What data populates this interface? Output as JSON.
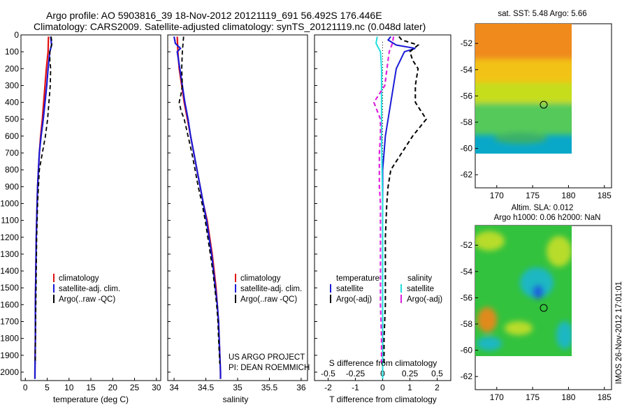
{
  "header": {
    "title_line1": "Argo profile: AO 5903816_39 18-Nov-2012 20121119_691 56.492S 176.446E",
    "title_line2": "Climatology: CARS2009. Satellite-adjusted climatology: synTS_20121119.nc (0.048d later)"
  },
  "colors": {
    "climatology": "#e01010",
    "satellite": "#1a1ad6",
    "argo": "#000000",
    "salinity_satellite": "#22dddd",
    "salinity_argo": "#dd22dd"
  },
  "depth_axis": {
    "ylim": [
      0,
      2050
    ],
    "ticks": [
      0,
      100,
      200,
      300,
      400,
      500,
      600,
      700,
      800,
      900,
      1000,
      1100,
      1200,
      1300,
      1400,
      1500,
      1600,
      1700,
      1800,
      1900,
      2000
    ]
  },
  "legend_profiles": {
    "climatology": "climatology",
    "satellite": "satellite-adj. clim.",
    "argo": "Argo(..raw -QC)"
  },
  "legend_diff": {
    "temp_header": "temperature",
    "sal_header": "salinity",
    "satellite": "satellite",
    "argo": "Argo(-adj)"
  },
  "project_note": {
    "line1": "US ARGO PROJECT",
    "line2": "PI: DEAN ROEMMICH"
  },
  "watermark": "IMOS 26-Nov-2012 17:01:01",
  "chart_data": [
    {
      "type": "line",
      "panel": "temperature",
      "xlabel": "temperature (deg C)",
      "ylabel": "",
      "xlim": [
        -1,
        31
      ],
      "ylim": [
        0,
        2050
      ],
      "xticks": [
        0,
        5,
        10,
        15,
        20,
        25,
        30
      ],
      "series": [
        {
          "name": "climatology",
          "depth": [
            10,
            100,
            200,
            300,
            400,
            500,
            600,
            700,
            800,
            900,
            1000,
            1200,
            1400,
            1600,
            1800,
            2000,
            2040
          ],
          "values": [
            5.3,
            5.2,
            4.8,
            4.5,
            4.2,
            3.9,
            3.5,
            3.2,
            3.0,
            2.8,
            2.7,
            2.5,
            2.4,
            2.3,
            2.3,
            2.2,
            2.2
          ]
        },
        {
          "name": "satellite-adj. clim.",
          "depth": [
            10,
            60,
            100,
            200,
            300,
            400,
            500,
            600,
            700,
            800,
            900,
            1000,
            1200,
            1400,
            1600,
            1800,
            2000,
            2040
          ],
          "values": [
            5.8,
            6.0,
            5.6,
            5.2,
            4.9,
            4.5,
            4.1,
            3.6,
            3.2,
            3.0,
            2.8,
            2.7,
            2.5,
            2.4,
            2.3,
            2.3,
            2.2,
            2.2
          ]
        },
        {
          "name": "Argo(..raw -QC)",
          "depth": [
            10,
            50,
            100,
            150,
            200,
            300,
            400,
            500,
            600,
            700,
            800,
            900,
            1000,
            1200,
            1400,
            1600,
            1800,
            1950
          ],
          "values": [
            5.9,
            6.1,
            5.6,
            5.6,
            5.8,
            5.7,
            5.4,
            5.1,
            4.6,
            3.9,
            3.2,
            3.0,
            2.8,
            2.6,
            2.5,
            2.4,
            2.3,
            2.3
          ]
        }
      ]
    },
    {
      "type": "line",
      "panel": "salinity",
      "xlabel": "salinity",
      "ylabel": "",
      "xlim": [
        33.9,
        36.1
      ],
      "ylim": [
        0,
        2050
      ],
      "xticks": [
        34,
        34.5,
        35,
        35.5,
        36
      ],
      "series": [
        {
          "name": "climatology",
          "depth": [
            10,
            100,
            200,
            300,
            400,
            500,
            600,
            700,
            800,
            900,
            1000,
            1100,
            1200,
            1300,
            1400,
            1500,
            1600,
            1700,
            1800,
            1900,
            2000,
            2040
          ],
          "values": [
            34.05,
            34.06,
            34.08,
            34.12,
            34.16,
            34.21,
            34.26,
            34.31,
            34.36,
            34.41,
            34.46,
            34.52,
            34.56,
            34.6,
            34.63,
            34.66,
            34.68,
            34.7,
            34.71,
            34.72,
            34.73,
            34.73
          ]
        },
        {
          "name": "satellite-adj. clim.",
          "depth": [
            10,
            50,
            80,
            100,
            200,
            300,
            400,
            500,
            600,
            700,
            800,
            900,
            1000,
            1100,
            1200,
            1300,
            1400,
            1500,
            1600,
            1700,
            1800,
            1900,
            2000,
            2040
          ],
          "values": [
            34.0,
            34.02,
            34.1,
            34.05,
            34.09,
            34.13,
            34.17,
            34.22,
            34.26,
            34.31,
            34.36,
            34.41,
            34.46,
            34.51,
            34.55,
            34.59,
            34.62,
            34.65,
            34.68,
            34.7,
            34.71,
            34.72,
            34.73,
            34.73
          ]
        },
        {
          "name": "Argo(..raw -QC)",
          "depth": [
            10,
            100,
            200,
            300,
            350,
            400,
            450,
            500,
            600,
            700,
            800,
            900,
            1000,
            1100,
            1200,
            1300,
            1400,
            1500,
            1600,
            1700,
            1800,
            1950
          ],
          "values": [
            34.15,
            34.13,
            34.12,
            34.13,
            34.11,
            34.08,
            34.11,
            34.16,
            34.22,
            34.28,
            34.33,
            34.38,
            34.44,
            34.49,
            34.53,
            34.57,
            34.61,
            34.64,
            34.67,
            34.69,
            34.7,
            34.72
          ]
        }
      ]
    },
    {
      "type": "line",
      "panel": "difference",
      "xlabel": "T difference from climatology",
      "xlabel_top": "S difference from climatology",
      "xlim": [
        -2.5,
        2.5
      ],
      "ylim": [
        0,
        2050
      ],
      "xticks": [
        -2,
        -1,
        0,
        1,
        2
      ],
      "xticks_top": [
        -0.5,
        -0.25,
        0,
        0.25,
        0.5
      ],
      "series": [
        {
          "name": "temperature satellite",
          "depth": [
            10,
            30,
            60,
            80,
            100,
            200,
            300,
            400,
            500,
            600,
            700,
            800,
            900,
            1000,
            1200,
            1400,
            1600,
            1800,
            2000,
            2040
          ],
          "values": [
            0.3,
            0.2,
            0.5,
            1.2,
            0.8,
            0.5,
            0.4,
            0.3,
            0.2,
            0.1,
            0.05,
            0,
            0,
            0,
            0,
            0,
            0,
            0,
            0,
            0
          ]
        },
        {
          "name": "temperature Argo(-adj)",
          "depth": [
            10,
            30,
            60,
            100,
            150,
            200,
            300,
            400,
            450,
            500,
            600,
            700,
            800,
            900,
            1000,
            1200,
            1400,
            1600,
            1800,
            1950
          ],
          "values": [
            0.6,
            0.7,
            1.3,
            1.0,
            1.1,
            1.3,
            1.2,
            1.2,
            1.4,
            1.6,
            1.1,
            0.7,
            0.3,
            0.2,
            0.15,
            0.1,
            0.1,
            0.1,
            0.05,
            0.05
          ]
        },
        {
          "name": "salinity satellite",
          "depth": [
            10,
            50,
            100,
            200,
            400,
            600,
            800,
            1000,
            1200,
            1400,
            1600,
            1800,
            2000,
            2040
          ],
          "values": [
            -0.05,
            -0.06,
            -0.02,
            -0.01,
            -0.01,
            -0.01,
            -0.005,
            0,
            0,
            0,
            0,
            0,
            0,
            0
          ]
        },
        {
          "name": "salinity Argo(-adj)",
          "depth": [
            10,
            50,
            100,
            150,
            200,
            300,
            350,
            400,
            450,
            500,
            600,
            700,
            800,
            900,
            1000,
            1200,
            1400,
            1600,
            1800,
            1950
          ],
          "values": [
            0.1,
            0.09,
            0.06,
            0.05,
            0.04,
            0.02,
            -0.03,
            -0.08,
            -0.05,
            -0.02,
            -0.02,
            -0.03,
            -0.03,
            -0.03,
            -0.02,
            -0.02,
            -0.02,
            -0.02,
            -0.01,
            -0.01
          ]
        }
      ]
    },
    {
      "type": "heatmap",
      "panel": "map_sst",
      "title": "sat. SST: 5.48  Argo: 5.66",
      "xlim": [
        167,
        186
      ],
      "ylim": [
        -63,
        -50.5
      ],
      "xticks": [
        170,
        175,
        180,
        185
      ],
      "yticks": [
        -52,
        -54,
        -56,
        -58,
        -60,
        -62
      ],
      "marker": [
        176.45,
        -56.49
      ]
    },
    {
      "type": "heatmap",
      "panel": "map_sla",
      "title": "Altim. SLA: 0.012",
      "subtitle": "Argo h1000: 0.06 h2000: NaN",
      "xlim": [
        167,
        186
      ],
      "ylim": [
        -63,
        -50.5
      ],
      "xticks": [
        170,
        175,
        180,
        185
      ],
      "yticks": [
        -52,
        -54,
        -56,
        -58,
        -60,
        -62
      ],
      "marker": [
        176.45,
        -56.49
      ]
    }
  ]
}
